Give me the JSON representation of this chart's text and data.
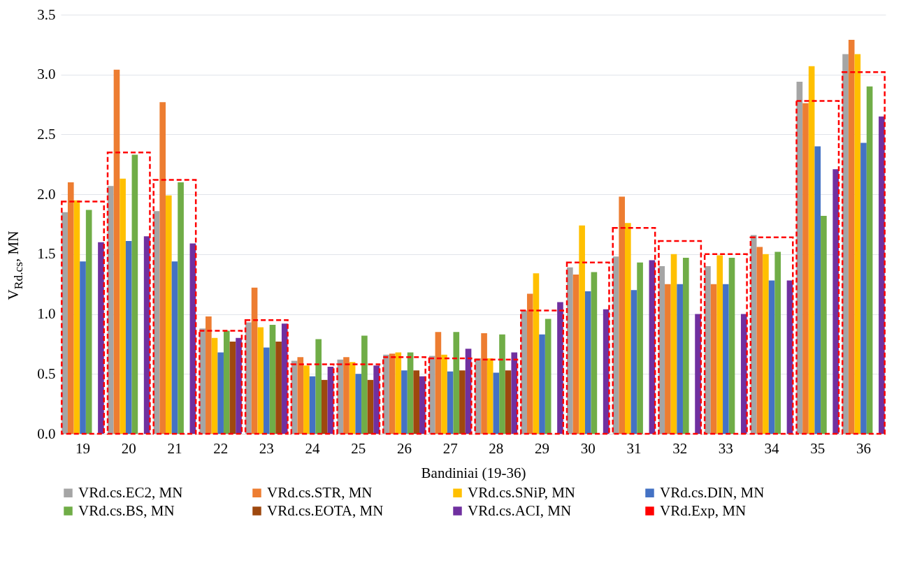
{
  "chart_data": {
    "type": "bar",
    "xlabel": "Bandiniai (19-36)",
    "ylabel": "V$_{Rd.cs}$, MN",
    "categories": [
      "19",
      "20",
      "21",
      "22",
      "23",
      "24",
      "25",
      "26",
      "27",
      "28",
      "29",
      "30",
      "31",
      "32",
      "33",
      "34",
      "35",
      "36"
    ],
    "ylim": [
      0,
      3.5
    ],
    "yticks": [
      {
        "value": 0,
        "label": "0.0"
      },
      {
        "value": 0.5,
        "label": "0.5"
      },
      {
        "value": 1,
        "label": "1.0"
      },
      {
        "value": 1.5,
        "label": "1.5"
      },
      {
        "value": 2,
        "label": "2.0"
      },
      {
        "value": 2.5,
        "label": "2.5"
      },
      {
        "value": 3,
        "label": "3.0"
      },
      {
        "value": 3.5,
        "label": "3.5"
      }
    ],
    "grid": "y",
    "legend": "bottom",
    "series": [
      {
        "name": "VRd.cs.EC2, MN",
        "color": "#a5a5a5",
        "values": [
          1.85,
          2.07,
          1.86,
          0.88,
          0.93,
          0.61,
          0.62,
          0.66,
          0.65,
          0.63,
          1.03,
          1.39,
          1.48,
          1.4,
          1.4,
          1.66,
          2.94,
          3.17
        ]
      },
      {
        "name": "VRd.cs.STR, MN",
        "color": "#ed7d31",
        "values": [
          2.1,
          3.04,
          2.77,
          0.98,
          1.22,
          0.64,
          0.64,
          0.67,
          0.85,
          0.84,
          1.17,
          1.33,
          1.98,
          1.25,
          1.25,
          1.56,
          2.76,
          3.29
        ]
      },
      {
        "name": "VRd.cs.SNiP, MN",
        "color": "#ffc000",
        "values": [
          1.95,
          2.13,
          1.99,
          0.8,
          0.89,
          0.57,
          0.6,
          0.68,
          0.66,
          0.63,
          1.34,
          1.74,
          1.76,
          1.5,
          1.49,
          1.5,
          3.07,
          3.17
        ]
      },
      {
        "name": "VRd.cs.DIN, MN",
        "color": "#4472c4",
        "values": [
          1.44,
          1.61,
          1.44,
          0.68,
          0.72,
          0.48,
          0.5,
          0.53,
          0.52,
          0.51,
          0.83,
          1.19,
          1.2,
          1.25,
          1.25,
          1.28,
          2.4,
          2.43
        ]
      },
      {
        "name": "VRd.cs.BS, MN",
        "color": "#70ad47",
        "values": [
          1.87,
          2.33,
          2.1,
          0.86,
          0.91,
          0.79,
          0.82,
          0.68,
          0.85,
          0.83,
          0.96,
          1.35,
          1.43,
          1.47,
          1.47,
          1.52,
          1.82,
          2.9
        ]
      },
      {
        "name": "VRd.cs.EOTA, MN",
        "color": "#9e480e",
        "values": [
          null,
          null,
          null,
          0.77,
          0.77,
          0.45,
          0.45,
          0.53,
          0.53,
          0.53,
          null,
          null,
          null,
          null,
          null,
          null,
          null,
          null
        ]
      },
      {
        "name": "VRd.cs.ACI, MN",
        "color": "#7030a0",
        "values": [
          1.6,
          1.65,
          1.59,
          0.8,
          0.92,
          0.56,
          0.57,
          0.48,
          0.71,
          0.68,
          1.1,
          1.04,
          1.45,
          1.0,
          1.0,
          1.28,
          2.21,
          2.65
        ]
      },
      {
        "name": "VRd.Exp, MN",
        "color": "#ff0000",
        "line_style": "dashed",
        "values": [
          1.94,
          2.35,
          2.12,
          0.86,
          0.95,
          0.58,
          0.58,
          0.64,
          0.63,
          0.62,
          1.03,
          1.43,
          1.72,
          1.61,
          1.5,
          1.64,
          2.78,
          3.02
        ]
      }
    ]
  }
}
